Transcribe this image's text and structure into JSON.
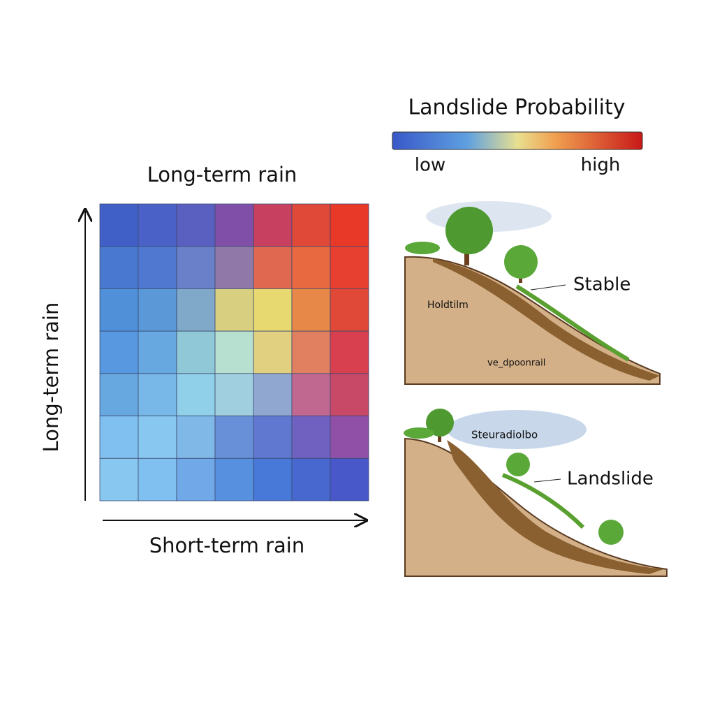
{
  "legend": {
    "title": "Landslide Probability",
    "low": "low",
    "high": "high"
  },
  "heatmap": {
    "title": "Long-term rain",
    "y_label": "Long-term rain",
    "x_label": "Short-term rain",
    "cells": [
      [
        "#4060c8",
        "#4a62c8",
        "#5a60c0",
        "#8050a8",
        "#c84060",
        "#e04838",
        "#e83828"
      ],
      [
        "#4878d0",
        "#5078d0",
        "#6a80c8",
        "#9078a8",
        "#e06850",
        "#e86840",
        "#e84030"
      ],
      [
        "#5090d8",
        "#5a98d8",
        "#80a8c8",
        "#d8d080",
        "#e8d870",
        "#e88848",
        "#e04838"
      ],
      [
        "#5898e0",
        "#68a8e0",
        "#90c8d8",
        "#b8e0d0",
        "#e0d080",
        "#e08060",
        "#d84050"
      ],
      [
        "#68a8e0",
        "#78b8e8",
        "#90d0e8",
        "#a0d0e0",
        "#90a8d0",
        "#c06890",
        "#c84868"
      ],
      [
        "#80c0f0",
        "#88c8f0",
        "#80b8e8",
        "#6890d8",
        "#6078d0",
        "#7060c0",
        "#9050a8"
      ],
      [
        "#88c8f0",
        "#80c0f0",
        "#70a8e8",
        "#5890e0",
        "#4878d8",
        "#4868d0",
        "#4858c8"
      ]
    ]
  },
  "stable_panel": {
    "label": "Stable",
    "inner_label_1": "Holdtilm",
    "inner_label_2": "ve_dpoonrail"
  },
  "landslide_panel": {
    "label": "Landslide",
    "inner_label": "Steuradiolbo"
  }
}
